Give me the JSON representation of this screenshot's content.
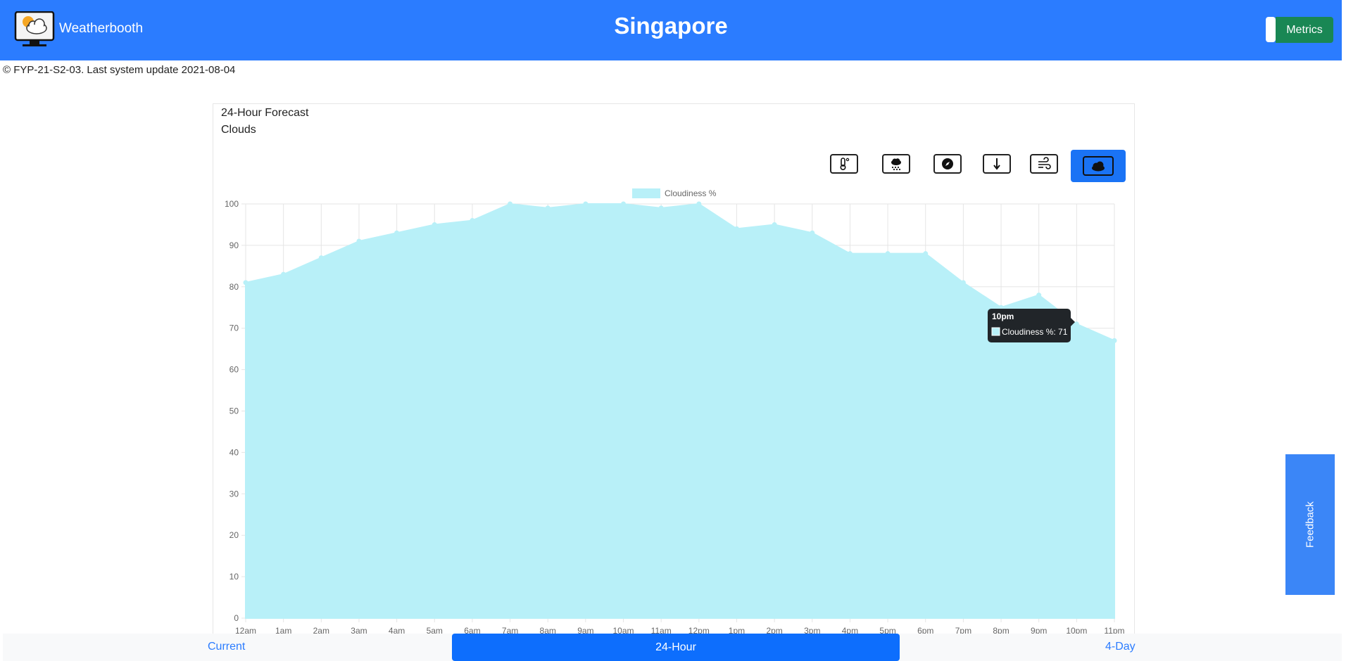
{
  "header": {
    "brand": "Weatherbooth",
    "city": "Singapore",
    "metrics_label": "Metrics"
  },
  "footer_note": "© FYP-21-S2-03. Last system update 2021-08-04",
  "card": {
    "title": "24-Hour Forecast",
    "subtitle": "Clouds"
  },
  "toolbar": {
    "icons": [
      "thermometer-icon",
      "rain-cloud-icon",
      "compass-icon",
      "pressure-arrow-icon",
      "wind-icon",
      "cloud-icon"
    ],
    "active": "cloud-icon"
  },
  "feedback_label": "Feedback",
  "nav": {
    "current": "Current",
    "twentyfour": "24-Hour",
    "fourday": "4-Day"
  },
  "tooltip": {
    "title": "10pm",
    "label": "Cloudiness %: 71"
  },
  "colors": {
    "header": "#2b7cff",
    "fill": "#b8f0f8",
    "metrics": "#198754",
    "active_nav": "#0d6efd"
  },
  "chart_data": {
    "type": "area",
    "x": [
      "12am",
      "1am",
      "2am",
      "3am",
      "4am",
      "5am",
      "6am",
      "7am",
      "8am",
      "9am",
      "10am",
      "11am",
      "12pm",
      "1pm",
      "2pm",
      "3pm",
      "4pm",
      "5pm",
      "6pm",
      "7pm",
      "8pm",
      "9pm",
      "10pm",
      "11pm"
    ],
    "series": [
      {
        "name": "Cloudiness %",
        "values": [
          81,
          83,
          87,
          91,
          93,
          95,
          96,
          100,
          99,
          100,
          100,
          99,
          100,
          94,
          95,
          93,
          88,
          88,
          88,
          81,
          75,
          78,
          71,
          67
        ]
      }
    ],
    "ylim": [
      0,
      100
    ],
    "yticks": [
      0,
      10,
      20,
      30,
      40,
      50,
      60,
      70,
      80,
      90,
      100
    ],
    "grid": true,
    "legend": "top-center"
  }
}
